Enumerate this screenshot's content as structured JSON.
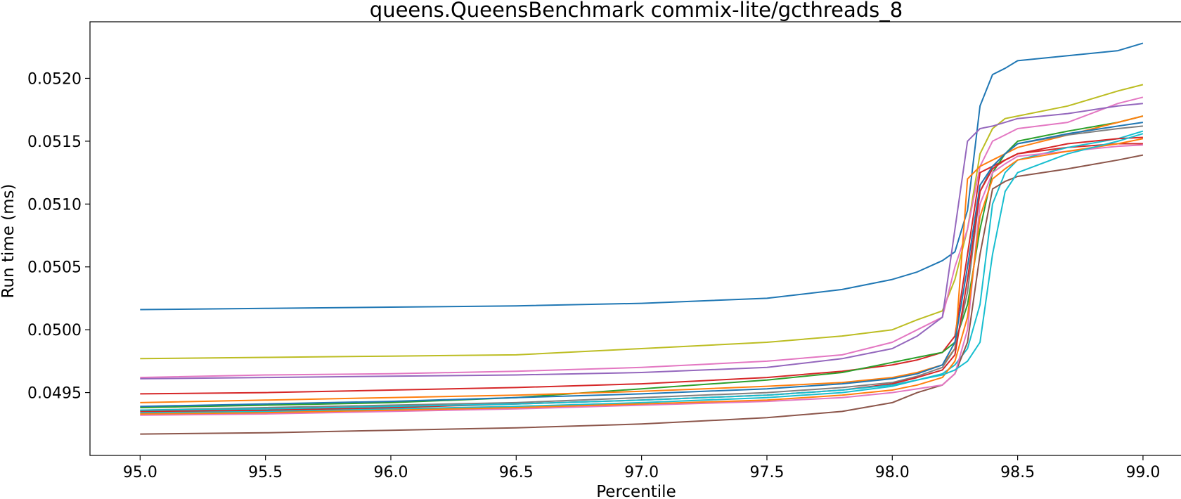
{
  "chart_data": {
    "type": "line",
    "title": "queens.QueensBenchmark commix-lite/gcthreads_8",
    "xlabel": "Percentile",
    "ylabel": "Run time (ms)",
    "xlim": [
      94.8,
      99.16
    ],
    "ylim": [
      0.049,
      0.05245
    ],
    "xticks": [
      "95.0",
      "95.5",
      "96.0",
      "96.5",
      "97.0",
      "97.5",
      "98.0",
      "98.5",
      "99.0"
    ],
    "yticks": [
      "0.0495",
      "0.0500",
      "0.0505",
      "0.0510",
      "0.0515",
      "0.0520"
    ],
    "x": [
      95.0,
      95.5,
      96.0,
      96.5,
      97.0,
      97.5,
      97.8,
      98.0,
      98.1,
      98.2,
      98.25,
      98.3,
      98.35,
      98.4,
      98.45,
      98.5,
      98.7,
      98.9,
      99.0
    ],
    "grid": false,
    "legend": "none",
    "series": [
      {
        "color": "#1f77b4",
        "values": [
          0.05016,
          0.05017,
          0.05018,
          0.05019,
          0.05021,
          0.05025,
          0.05032,
          0.0504,
          0.05046,
          0.05055,
          0.05062,
          0.05095,
          0.05178,
          0.05203,
          0.05208,
          0.05214,
          0.05218,
          0.05222,
          0.05228
        ]
      },
      {
        "color": "#bcbd22",
        "values": [
          0.04977,
          0.04978,
          0.04979,
          0.0498,
          0.04985,
          0.0499,
          0.04995,
          0.05,
          0.05008,
          0.05015,
          0.0504,
          0.0508,
          0.0514,
          0.0516,
          0.05168,
          0.0517,
          0.05178,
          0.0519,
          0.05195
        ]
      },
      {
        "color": "#e377c2",
        "values": [
          0.04962,
          0.04964,
          0.04965,
          0.04967,
          0.0497,
          0.04975,
          0.0498,
          0.0499,
          0.05,
          0.0501,
          0.0505,
          0.0508,
          0.0513,
          0.0515,
          0.05155,
          0.0516,
          0.05165,
          0.0518,
          0.05185
        ]
      },
      {
        "color": "#9467bd",
        "values": [
          0.04961,
          0.04962,
          0.04963,
          0.04964,
          0.04966,
          0.0497,
          0.04977,
          0.04985,
          0.04995,
          0.0501,
          0.0508,
          0.0515,
          0.0516,
          0.05162,
          0.05165,
          0.05168,
          0.05172,
          0.05178,
          0.0518
        ]
      },
      {
        "color": "#d62728",
        "values": [
          0.04949,
          0.0495,
          0.04952,
          0.04954,
          0.04957,
          0.04962,
          0.04967,
          0.04972,
          0.04976,
          0.04982,
          0.04995,
          0.0506,
          0.05125,
          0.0513,
          0.05135,
          0.0514,
          0.05145,
          0.05148,
          0.05148
        ]
      },
      {
        "color": "#2ca02c",
        "values": [
          0.04938,
          0.0494,
          0.04942,
          0.04946,
          0.04953,
          0.0496,
          0.04966,
          0.04974,
          0.04978,
          0.04982,
          0.0499,
          0.0502,
          0.0508,
          0.05125,
          0.0514,
          0.0515,
          0.05158,
          0.05165,
          0.0517
        ]
      },
      {
        "color": "#ff7f0e",
        "values": [
          0.04942,
          0.04944,
          0.04946,
          0.04948,
          0.04951,
          0.04955,
          0.04958,
          0.04962,
          0.04966,
          0.04972,
          0.04985,
          0.0512,
          0.0513,
          0.05135,
          0.0514,
          0.05145,
          0.05155,
          0.05165,
          0.0517
        ]
      },
      {
        "color": "#17becf",
        "values": [
          0.04934,
          0.04935,
          0.04937,
          0.04939,
          0.04942,
          0.04946,
          0.0495,
          0.04955,
          0.0496,
          0.04965,
          0.04972,
          0.04985,
          0.0502,
          0.051,
          0.05125,
          0.05135,
          0.05145,
          0.05152,
          0.05158
        ]
      },
      {
        "color": "#7f7f7f",
        "values": [
          0.04936,
          0.04938,
          0.0494,
          0.04942,
          0.04946,
          0.0495,
          0.04954,
          0.04958,
          0.04963,
          0.0497,
          0.04985,
          0.0503,
          0.0511,
          0.0513,
          0.0514,
          0.05148,
          0.05155,
          0.0516,
          0.05162
        ]
      },
      {
        "color": "#1f77b4",
        "values": [
          0.04939,
          0.04941,
          0.04943,
          0.04946,
          0.04949,
          0.04953,
          0.04957,
          0.04961,
          0.04965,
          0.04972,
          0.0499,
          0.0505,
          0.05115,
          0.0513,
          0.0514,
          0.05148,
          0.05156,
          0.05162,
          0.05165
        ]
      },
      {
        "color": "#8c564b",
        "values": [
          0.04917,
          0.04918,
          0.0492,
          0.04922,
          0.04925,
          0.0493,
          0.04935,
          0.04942,
          0.0495,
          0.04956,
          0.04965,
          0.0499,
          0.0506,
          0.05112,
          0.05118,
          0.05122,
          0.05128,
          0.05135,
          0.05139
        ]
      },
      {
        "color": "#e377c2",
        "values": [
          0.04932,
          0.04933,
          0.04935,
          0.04937,
          0.0494,
          0.04943,
          0.04946,
          0.0495,
          0.04953,
          0.04956,
          0.04965,
          0.05,
          0.051,
          0.05125,
          0.05132,
          0.05138,
          0.05142,
          0.05146,
          0.05147
        ]
      },
      {
        "color": "#ff7f0e",
        "values": [
          0.04933,
          0.04934,
          0.04936,
          0.04938,
          0.04941,
          0.04944,
          0.04948,
          0.04952,
          0.04956,
          0.04962,
          0.04975,
          0.0501,
          0.0509,
          0.0512,
          0.05128,
          0.05135,
          0.05142,
          0.05148,
          0.05152
        ]
      },
      {
        "color": "#d62728",
        "values": [
          0.04935,
          0.04936,
          0.04938,
          0.04941,
          0.04944,
          0.04948,
          0.04952,
          0.04957,
          0.04962,
          0.04968,
          0.0498,
          0.0504,
          0.0511,
          0.05128,
          0.05135,
          0.0514,
          0.05148,
          0.05152,
          0.05153
        ]
      },
      {
        "color": "#17becf",
        "values": [
          0.04936,
          0.04937,
          0.04939,
          0.04941,
          0.04944,
          0.04948,
          0.04952,
          0.04956,
          0.0496,
          0.04964,
          0.04968,
          0.04975,
          0.0499,
          0.0506,
          0.0511,
          0.05125,
          0.0514,
          0.0515,
          0.05156
        ]
      }
    ]
  }
}
